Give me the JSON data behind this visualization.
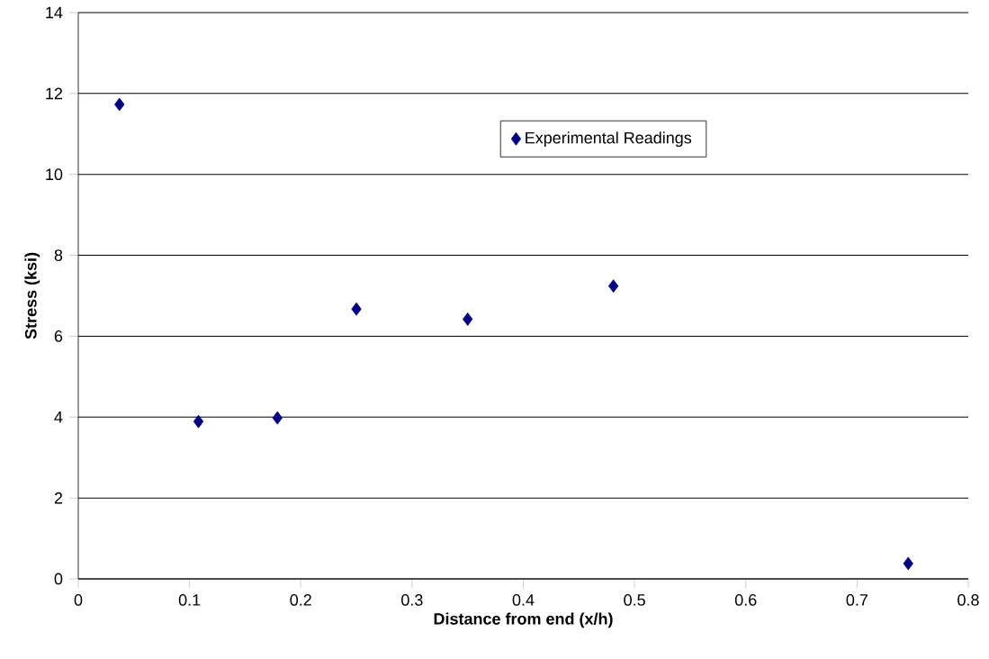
{
  "chart_data": {
    "type": "scatter",
    "xlabel": "Distance from end (x/h)",
    "ylabel": "Stress (ksi)",
    "x": [
      0.037,
      0.108,
      0.179,
      0.25,
      0.35,
      0.481,
      0.746
    ],
    "series": [
      {
        "name": "Experimental Readings",
        "color": "#000080",
        "values": [
          11.73,
          3.89,
          3.98,
          6.67,
          6.42,
          7.24,
          0.38
        ]
      }
    ],
    "xlim": [
      0,
      0.8
    ],
    "xticks": [
      0,
      0.1,
      0.2,
      0.3,
      0.4,
      0.5,
      0.6,
      0.7,
      0.8
    ],
    "ylim": [
      0,
      14
    ],
    "yticks": [
      0,
      2,
      4,
      6,
      8,
      10,
      12,
      14
    ],
    "grid": "y",
    "legend": "top",
    "marker": "diamond"
  }
}
